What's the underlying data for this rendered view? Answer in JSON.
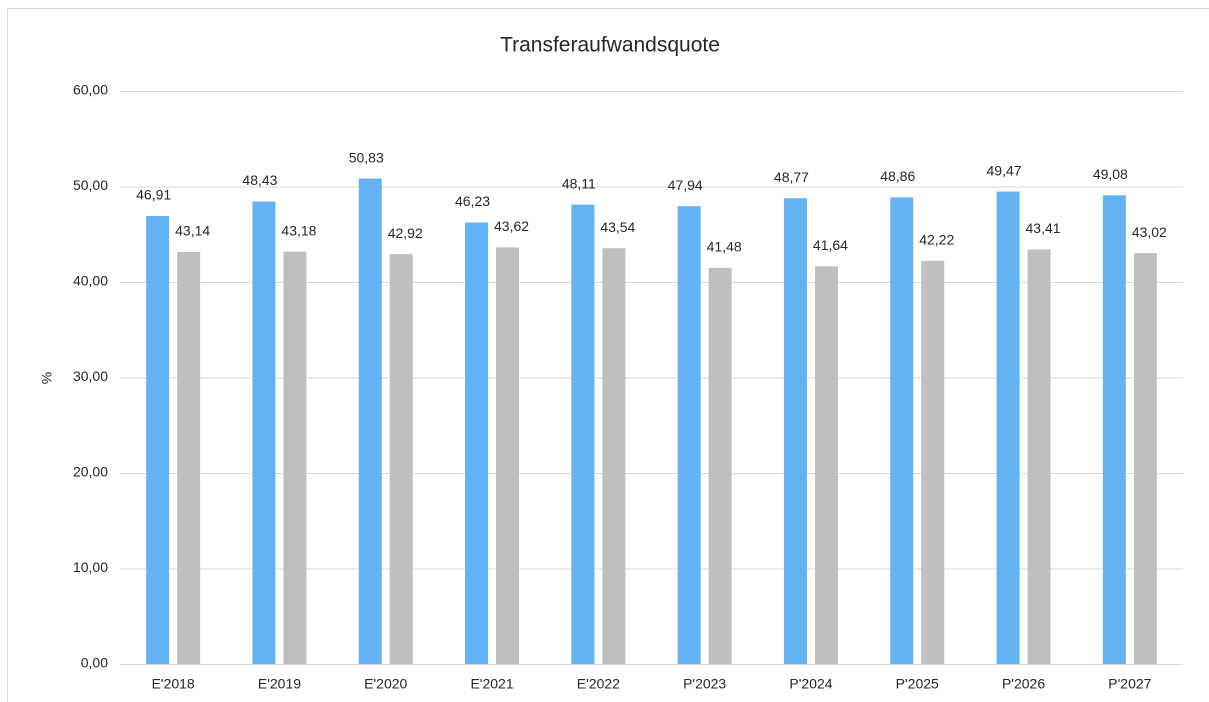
{
  "chart_data": {
    "type": "bar",
    "title": "Transferaufwandsquote",
    "y_label": "%",
    "categories": [
      "E'2018",
      "E'2019",
      "E'2020",
      "E'2021",
      "E'2022",
      "P'2023",
      "P'2024",
      "P'2025",
      "P'2026",
      "P'2027"
    ],
    "series": [
      {
        "color": "#63b3f4",
        "values": [
          46.91,
          48.43,
          50.83,
          46.23,
          48.11,
          47.94,
          48.77,
          48.86,
          49.47,
          49.08
        ],
        "value_labels": [
          "46,91",
          "48,43",
          "50,83",
          "46,23",
          "48,11",
          "47,94",
          "48,77",
          "48,86",
          "49,47",
          "49,08"
        ]
      },
      {
        "color": "#bfbfbf",
        "values": [
          43.14,
          43.18,
          42.92,
          43.62,
          43.54,
          41.48,
          41.64,
          42.22,
          43.41,
          43.02
        ],
        "value_labels": [
          "43,14",
          "43,18",
          "42,92",
          "43,62",
          "43,54",
          "41,48",
          "41,64",
          "42,22",
          "43,41",
          "43,02"
        ]
      }
    ],
    "ylim": [
      0,
      60
    ],
    "yticks": [
      {
        "value": 0,
        "label": "0,00"
      },
      {
        "value": 10,
        "label": "10,00"
      },
      {
        "value": 20,
        "label": "20,00"
      },
      {
        "value": 30,
        "label": "30,00"
      },
      {
        "value": 40,
        "label": "40,00"
      },
      {
        "value": 50,
        "label": "50,00"
      },
      {
        "value": 60,
        "label": "60,00"
      }
    ],
    "grid": true
  }
}
